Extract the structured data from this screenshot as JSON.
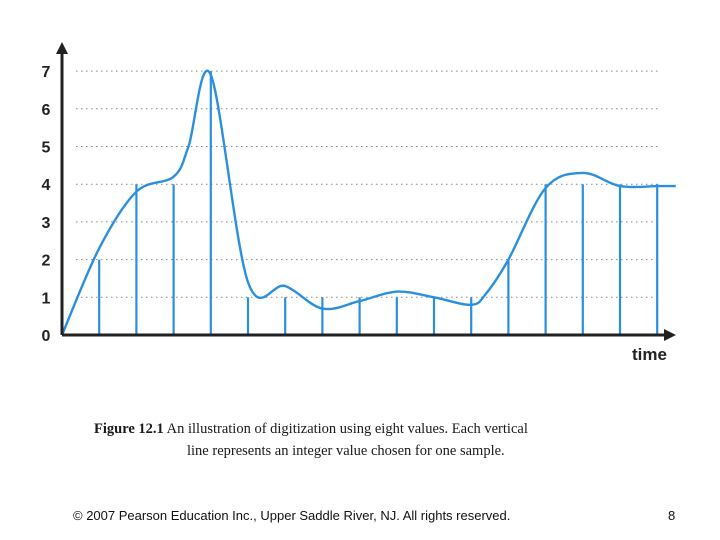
{
  "chart_data": {
    "type": "line",
    "title": "",
    "xlabel": "time",
    "ylabel": "",
    "yticks": [
      "0",
      "1",
      "2",
      "3",
      "4",
      "5",
      "6",
      "7"
    ],
    "ylim": [
      0,
      7
    ],
    "xlim": [
      0,
      16.5
    ],
    "grid": "dotted horizontal",
    "curve": {
      "x": [
        0,
        1,
        2,
        3,
        3.4,
        4,
        5,
        6,
        7,
        8,
        9,
        10,
        11,
        11.4,
        12,
        13,
        14,
        15,
        16,
        16.5
      ],
      "y": [
        0,
        2.3,
        3.8,
        4.2,
        5.0,
        6.9,
        1.4,
        1.3,
        0.7,
        0.9,
        1.15,
        1.0,
        0.8,
        1.1,
        2.0,
        3.9,
        4.3,
        3.95,
        3.95,
        3.95
      ]
    },
    "samples": {
      "x": [
        1,
        2,
        3,
        4,
        5,
        6,
        7,
        8,
        9,
        10,
        11,
        12,
        13,
        14,
        15,
        16
      ],
      "y": [
        2,
        4,
        4,
        7,
        1,
        1,
        1,
        1,
        1,
        1,
        1,
        2,
        4,
        4,
        4,
        4
      ]
    },
    "line_color": "#2b8fe0",
    "axis_color": "#222222"
  },
  "caption": {
    "figure_number": "Figure 12.1",
    "line1": "An illustration of digitization using eight values.  Each vertical",
    "line2": "line represents an integer value chosen for one sample."
  },
  "footer": {
    "copyright": "© 2007 Pearson Education Inc., Upper Saddle River, NJ. All rights reserved.",
    "page_number": "8"
  }
}
